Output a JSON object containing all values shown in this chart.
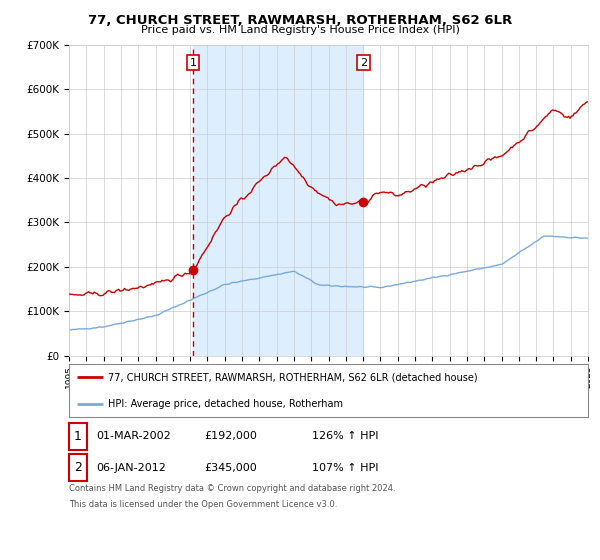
{
  "title_line1": "77, CHURCH STREET, RAWMARSH, ROTHERHAM, S62 6LR",
  "title_line2": "Price paid vs. HM Land Registry's House Price Index (HPI)",
  "legend_label_red": "77, CHURCH STREET, RAWMARSH, ROTHERHAM, S62 6LR (detached house)",
  "legend_label_blue": "HPI: Average price, detached house, Rotherham",
  "transaction1_date": "01-MAR-2002",
  "transaction1_price": "£192,000",
  "transaction1_hpi": "126% ↑ HPI",
  "transaction2_date": "06-JAN-2012",
  "transaction2_price": "£345,000",
  "transaction2_hpi": "107% ↑ HPI",
  "footer_line1": "Contains HM Land Registry data © Crown copyright and database right 2024.",
  "footer_line2": "This data is licensed under the Open Government Licence v3.0.",
  "ylim": [
    0,
    700000
  ],
  "background_color": "#ffffff",
  "plot_bg_color": "#ffffff",
  "shade_color": "#ddeeff",
  "red_line_color": "#cc0000",
  "blue_line_color": "#7aaadd",
  "dashed_line_color": "#cc0000",
  "transaction1_x": 2002.17,
  "transaction2_x": 2012.02,
  "transaction1_y": 192000,
  "transaction2_y": 345000,
  "xlim_left": 1995,
  "xlim_right": 2025
}
